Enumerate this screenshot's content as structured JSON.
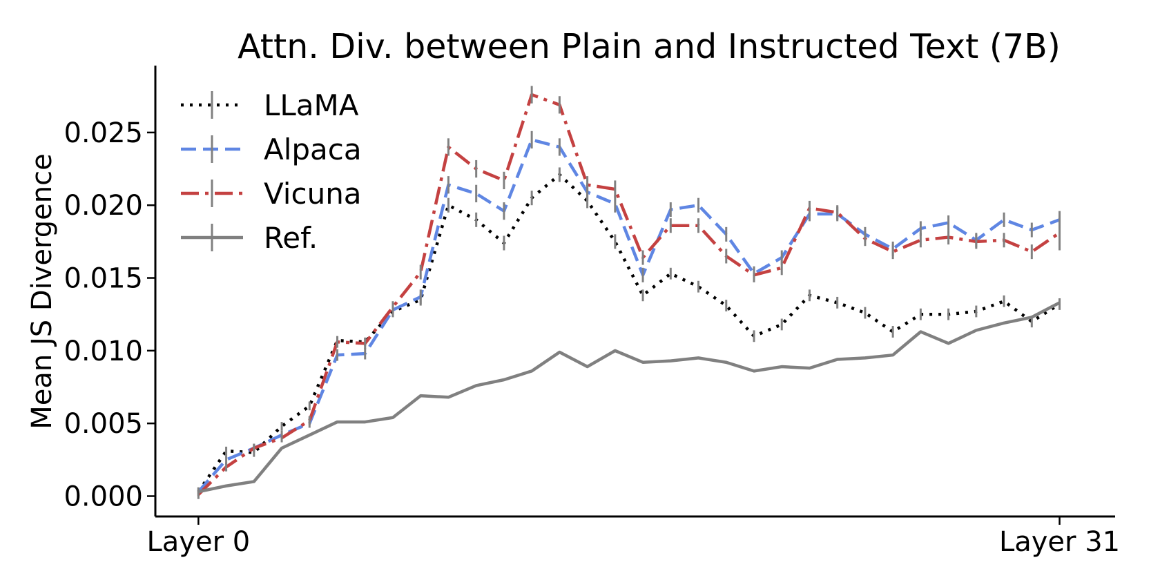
{
  "chart_data": {
    "type": "line",
    "title": "Attn. Div. between Plain and Instructed Text (7B)",
    "xlabel": "",
    "ylabel": "Mean JS Divergence",
    "x": [
      0,
      1,
      2,
      3,
      4,
      5,
      6,
      7,
      8,
      9,
      10,
      11,
      12,
      13,
      14,
      15,
      16,
      17,
      18,
      19,
      20,
      21,
      22,
      23,
      24,
      25,
      26,
      27,
      28,
      29,
      30,
      31
    ],
    "x_ticks": [
      0,
      31
    ],
    "x_tick_labels": [
      "Layer 0",
      "Layer 31"
    ],
    "xlim": [
      -1.55,
      33
    ],
    "ylim": [
      -0.0014,
      0.0296
    ],
    "y_ticks": [
      0.0,
      0.005,
      0.01,
      0.015,
      0.02,
      0.025
    ],
    "y_tick_labels": [
      "0.000",
      "0.005",
      "0.010",
      "0.015",
      "0.020",
      "0.025"
    ],
    "grid": false,
    "legend_position": "top-left",
    "series": [
      {
        "name": "LLaMA",
        "color": "#000000",
        "dash": "dotted",
        "values": [
          0.0003,
          0.0031,
          0.003,
          0.0048,
          0.0062,
          0.0107,
          0.0106,
          0.0127,
          0.0135,
          0.02,
          0.019,
          0.0174,
          0.0205,
          0.0221,
          0.0203,
          0.0175,
          0.0138,
          0.0153,
          0.0144,
          0.0131,
          0.011,
          0.0118,
          0.0138,
          0.0133,
          0.0126,
          0.0113,
          0.0125,
          0.0125,
          0.0127,
          0.0134,
          0.012,
          0.0132
        ],
        "err": [
          0.0003,
          0.0003,
          0.0003,
          0.0003,
          0.0003,
          0.0003,
          0.0003,
          0.0004,
          0.0004,
          0.0005,
          0.0005,
          0.0005,
          0.0005,
          0.0005,
          0.0005,
          0.0005,
          0.0004,
          0.0004,
          0.0004,
          0.0004,
          0.0004,
          0.0004,
          0.0004,
          0.0004,
          0.0004,
          0.0004,
          0.0004,
          0.0004,
          0.0004,
          0.0004,
          0.0004,
          0.0004
        ]
      },
      {
        "name": "Alpaca",
        "color": "#5f86e3",
        "dash": "dashed",
        "values": [
          0.0003,
          0.0025,
          0.0033,
          0.0042,
          0.005,
          0.0097,
          0.0098,
          0.0128,
          0.0137,
          0.0214,
          0.0208,
          0.0196,
          0.0245,
          0.024,
          0.0209,
          0.0201,
          0.0152,
          0.0197,
          0.02,
          0.018,
          0.0153,
          0.0164,
          0.0194,
          0.0194,
          0.018,
          0.017,
          0.0184,
          0.0188,
          0.0176,
          0.019,
          0.0183,
          0.019
        ],
        "err": [
          0.0003,
          0.0003,
          0.0003,
          0.0003,
          0.0003,
          0.0004,
          0.0004,
          0.0004,
          0.0005,
          0.0006,
          0.0006,
          0.0006,
          0.0006,
          0.0006,
          0.0006,
          0.0006,
          0.0005,
          0.0005,
          0.0005,
          0.0005,
          0.0005,
          0.0005,
          0.0005,
          0.0005,
          0.0005,
          0.0005,
          0.0005,
          0.0005,
          0.0005,
          0.0005,
          0.0005,
          0.0006
        ]
      },
      {
        "name": "Vicuna",
        "color": "#c44141",
        "dash": "dashdot",
        "values": [
          0.0001,
          0.002,
          0.0033,
          0.004,
          0.0052,
          0.0106,
          0.0105,
          0.013,
          0.0154,
          0.024,
          0.0225,
          0.0217,
          0.0276,
          0.0269,
          0.0214,
          0.0211,
          0.0164,
          0.0186,
          0.0186,
          0.0165,
          0.0152,
          0.0157,
          0.0198,
          0.0195,
          0.0177,
          0.0168,
          0.0176,
          0.0178,
          0.0175,
          0.0176,
          0.0168,
          0.0181
        ],
        "err": [
          0.0003,
          0.0003,
          0.0003,
          0.0003,
          0.0003,
          0.0004,
          0.0004,
          0.0004,
          0.0005,
          0.0006,
          0.0006,
          0.0006,
          0.0006,
          0.0006,
          0.0006,
          0.0006,
          0.0005,
          0.0005,
          0.0005,
          0.0005,
          0.0005,
          0.0005,
          0.0005,
          0.0005,
          0.0005,
          0.0005,
          0.0005,
          0.0005,
          0.0005,
          0.0005,
          0.0005,
          0.0012
        ]
      },
      {
        "name": "Ref.",
        "color": "#808080",
        "dash": "solid",
        "values": [
          0.0003,
          0.0007,
          0.001,
          0.0033,
          0.0042,
          0.0051,
          0.0051,
          0.0054,
          0.0069,
          0.0068,
          0.0076,
          0.008,
          0.0086,
          0.0099,
          0.0089,
          0.01,
          0.0092,
          0.0093,
          0.0095,
          0.0092,
          0.0086,
          0.0089,
          0.0088,
          0.0094,
          0.0095,
          0.0097,
          0.0113,
          0.0105,
          0.0114,
          0.0119,
          0.0123,
          0.0133
        ],
        "err": [
          0,
          0,
          0,
          0,
          0,
          0,
          0,
          0,
          0,
          0,
          0,
          0,
          0,
          0,
          0,
          0,
          0,
          0,
          0,
          0,
          0,
          0,
          0,
          0,
          0,
          0,
          0,
          0,
          0,
          0,
          0,
          0.0003
        ]
      }
    ]
  }
}
